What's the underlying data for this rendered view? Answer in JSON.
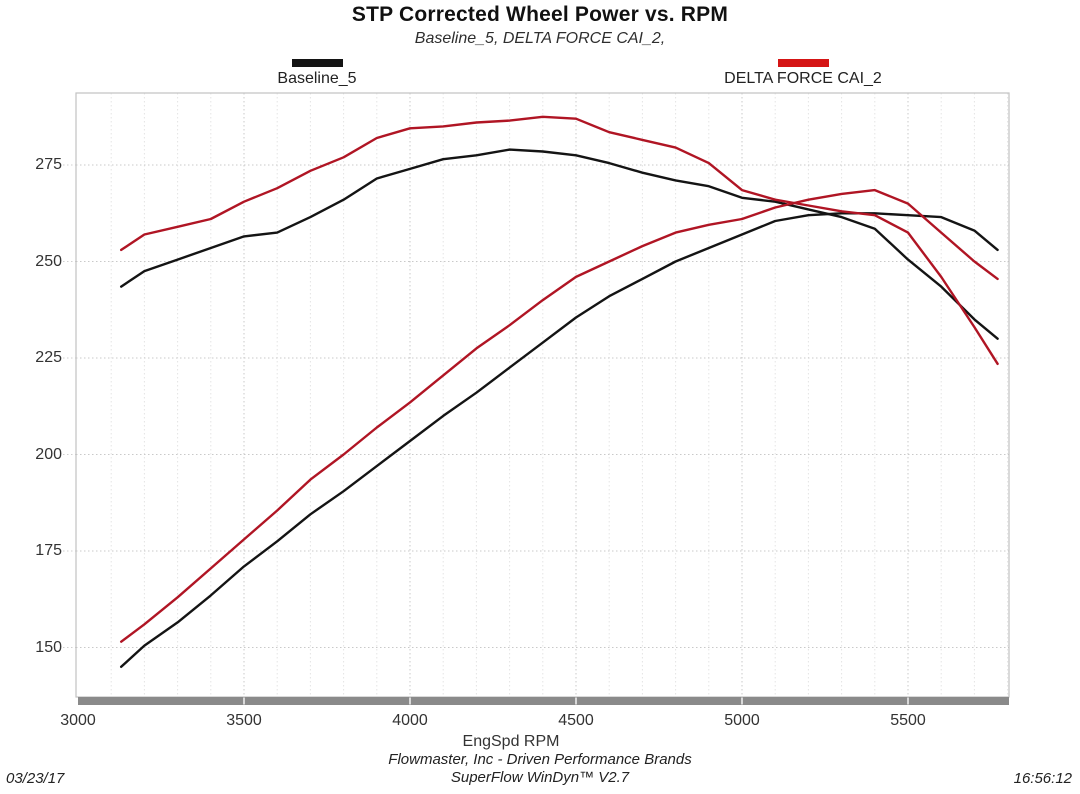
{
  "header": {
    "title": "STP Corrected Wheel Power vs. RPM",
    "subtitle": "Baseline_5, DELTA FORCE CAI_2,"
  },
  "legend": {
    "items": [
      {
        "label": "Baseline_5",
        "color": "#141414"
      },
      {
        "label": "DELTA FORCE CAI_2",
        "color": "#d51515"
      }
    ]
  },
  "footer": {
    "line1": "Flowmaster, Inc - Driven Performance Brands",
    "line2": "SuperFlow WinDyn™ V2.7",
    "date": "03/23/17",
    "time": "16:56:12"
  },
  "chart_data": {
    "type": "line",
    "title": "STP Corrected Wheel Power vs. RPM",
    "subtitle": "Baseline_5, DELTA FORCE CAI_2,",
    "xlabel": "EngSpd RPM",
    "ylabel": "",
    "xlim": [
      3000,
      5810
    ],
    "ylim": [
      135,
      294
    ],
    "x_ticks": [
      3000,
      3500,
      4000,
      4500,
      5000,
      5500
    ],
    "y_ticks": [
      150,
      175,
      200,
      225,
      250,
      275
    ],
    "x_minor_step": 100,
    "grid": true,
    "legend_position": "top",
    "x": [
      3130,
      3200,
      3300,
      3400,
      3500,
      3600,
      3700,
      3800,
      3900,
      4000,
      4100,
      4200,
      4300,
      4400,
      4500,
      4600,
      4700,
      4800,
      4900,
      5000,
      5100,
      5200,
      5300,
      5400,
      5500,
      5600,
      5700,
      5770
    ],
    "series": [
      {
        "name": "Baseline_5 (upper curve)",
        "color": "#141414",
        "values": [
          243.5,
          247.5,
          250.5,
          253.5,
          256.5,
          257.5,
          261.5,
          266.0,
          271.5,
          274.0,
          276.5,
          277.5,
          279.0,
          278.5,
          277.5,
          275.5,
          273.0,
          271.0,
          269.5,
          266.5,
          265.5,
          263.5,
          261.5,
          258.5,
          250.5,
          243.5,
          235.0,
          230.0
        ]
      },
      {
        "name": "Baseline_5 (lower curve)",
        "color": "#141414",
        "values": [
          145.0,
          150.5,
          156.5,
          163.5,
          171.0,
          177.5,
          184.5,
          190.5,
          197.0,
          203.5,
          210.0,
          216.0,
          222.5,
          229.0,
          235.5,
          241.0,
          245.5,
          250.0,
          253.5,
          257.0,
          260.5,
          262.0,
          262.5,
          262.5,
          262.0,
          261.5,
          258.0,
          253.0
        ]
      },
      {
        "name": "DELTA FORCE CAI_2 (upper curve)",
        "color": "#b01524",
        "values": [
          253.0,
          257.0,
          259.0,
          261.0,
          265.5,
          269.0,
          273.5,
          277.0,
          282.0,
          284.5,
          285.0,
          286.0,
          286.5,
          287.5,
          287.0,
          283.5,
          281.5,
          279.5,
          275.5,
          268.5,
          266.0,
          264.5,
          263.0,
          262.0,
          257.5,
          246.0,
          233.0,
          223.5
        ]
      },
      {
        "name": "DELTA FORCE CAI_2 (lower curve)",
        "color": "#b01524",
        "values": [
          151.5,
          156.0,
          163.0,
          170.5,
          178.0,
          185.5,
          193.5,
          200.0,
          207.0,
          213.5,
          220.5,
          227.5,
          233.5,
          240.0,
          246.0,
          250.0,
          254.0,
          257.5,
          259.5,
          261.0,
          264.0,
          266.0,
          267.5,
          268.5,
          265.0,
          257.5,
          250.0,
          245.5
        ]
      }
    ]
  }
}
